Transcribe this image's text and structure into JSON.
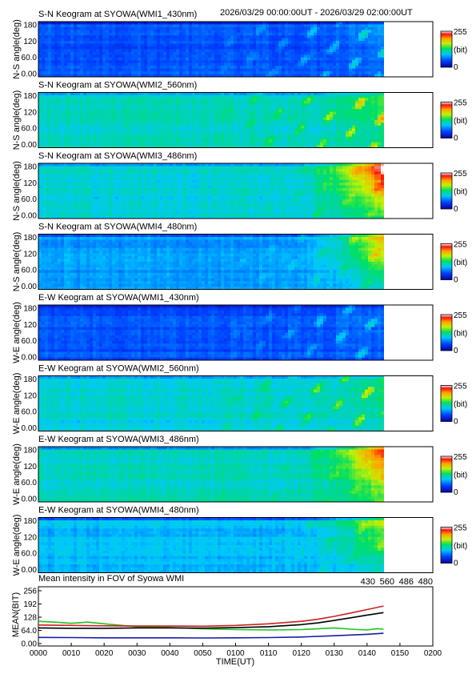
{
  "header": {
    "time_range": "2026/03/29 00:00:00UT - 2026/03/29 02:00:00UT"
  },
  "colorbar": {
    "max_label": "255",
    "unit_label": "(bit)",
    "min_label": "0"
  },
  "keograms": [
    {
      "title": "S-N Keogram at SYOWA(WMI1_430nm)",
      "ylabel": "N-S angle(deg)",
      "yticks": [
        "180",
        "120",
        "60.0",
        "0.00"
      ],
      "base_level": 0.2,
      "east_glow": 0.1,
      "aurora_strength": 0.45
    },
    {
      "title": "S-N Keogram at SYOWA(WMI2_560nm)",
      "ylabel": "N-S angle(deg)",
      "yticks": [
        "180",
        "120",
        "60.0",
        "0.00"
      ],
      "base_level": 0.42,
      "east_glow": 0.12,
      "aurora_strength": 0.55
    },
    {
      "title": "S-N Keogram at SYOWA(WMI3_486nm)",
      "ylabel": "N-S angle(deg)",
      "yticks": [
        "180",
        "120",
        "60.0",
        "0.00"
      ],
      "base_level": 0.4,
      "east_glow": 0.55,
      "aurora_strength": 0.2
    },
    {
      "title": "S-N Keogram at SYOWA(WMI4_480nm)",
      "ylabel": "N-S angle(deg)",
      "yticks": [
        "180",
        "120",
        "60.0",
        "0.00"
      ],
      "base_level": 0.3,
      "east_glow": 0.45,
      "aurora_strength": 0.25
    },
    {
      "title": "E-W Keogram at SYOWA(WMI1_430nm)",
      "ylabel": "W-E angle(deg)",
      "yticks": [
        "180",
        "120",
        "60.0",
        "0.00"
      ],
      "base_level": 0.2,
      "east_glow": 0.05,
      "aurora_strength": 0.4
    },
    {
      "title": "E-W Keogram at SYOWA(WMI2_560nm)",
      "ylabel": "W-E angle(deg)",
      "yticks": [
        "180",
        "120",
        "60.0",
        "0.00"
      ],
      "base_level": 0.4,
      "east_glow": 0.1,
      "aurora_strength": 0.55
    },
    {
      "title": "E-W Keogram at SYOWA(WMI3_486nm)",
      "ylabel": "W-E angle(deg)",
      "yticks": [
        "180",
        "120",
        "60.0",
        "0.00"
      ],
      "base_level": 0.42,
      "east_glow": 0.45,
      "aurora_strength": 0.15
    },
    {
      "title": "E-W Keogram at SYOWA(WMI4_480nm)",
      "ylabel": "W-E angle(deg)",
      "yticks": [
        "180",
        "120",
        "60.0",
        "0.00"
      ],
      "base_level": 0.34,
      "east_glow": 0.3,
      "aurora_strength": 0.2
    }
  ],
  "chart_data": {
    "type": "line",
    "title": "Mean intensity in FOV of Syowa WMI",
    "ylabel": "MEAN(BIT)",
    "xlabel": "TIME(UT)",
    "xlim": [
      0,
      120
    ],
    "ylim": [
      0,
      256
    ],
    "yticks": [
      "256",
      "192",
      "128",
      "64.0",
      "0.00"
    ],
    "xticks": [
      "0000",
      "0010",
      "0020",
      "0030",
      "0040",
      "0050",
      "0100",
      "0110",
      "0120",
      "0130",
      "0140",
      "0150",
      "0200"
    ],
    "series": [
      {
        "name": "430",
        "color": "#1a1aa8",
        "x": [
          0,
          10,
          20,
          30,
          40,
          50,
          60,
          70,
          80,
          90,
          100,
          105
        ],
        "values": [
          30,
          29,
          28,
          28,
          28,
          27,
          28,
          29,
          32,
          38,
          45,
          50
        ]
      },
      {
        "name": "560",
        "color": "#1fc21f",
        "x": [
          0,
          5,
          10,
          15,
          20,
          30,
          40,
          50,
          60,
          70,
          80,
          90,
          95,
          100,
          103,
          105
        ],
        "values": [
          108,
          104,
          98,
          104,
          96,
          82,
          78,
          72,
          68,
          66,
          68,
          76,
          70,
          66,
          72,
          70
        ]
      },
      {
        "name": "486",
        "color": "#cc2020",
        "x": [
          0,
          10,
          20,
          30,
          40,
          50,
          60,
          70,
          80,
          85,
          90,
          95,
          100,
          105
        ],
        "values": [
          90,
          88,
          86,
          85,
          85,
          84,
          88,
          96,
          108,
          118,
          132,
          148,
          165,
          182
        ]
      },
      {
        "name": "480",
        "color": "#000000",
        "x": [
          0,
          10,
          20,
          30,
          40,
          50,
          60,
          70,
          80,
          85,
          90,
          95,
          100,
          105
        ],
        "values": [
          76,
          74,
          74,
          76,
          76,
          75,
          77,
          82,
          92,
          100,
          112,
          125,
          138,
          150
        ]
      }
    ]
  }
}
